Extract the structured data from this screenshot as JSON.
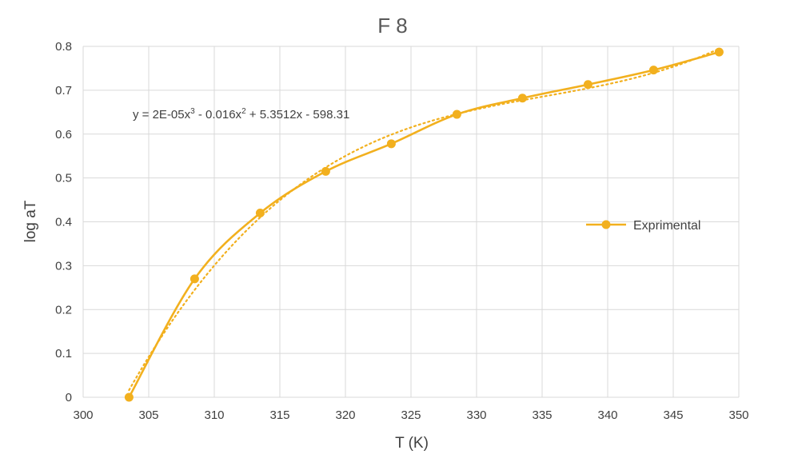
{
  "chart_data": {
    "type": "line",
    "title": "F 8",
    "xlabel": "T (K)",
    "ylabel": "log aT",
    "xlim": [
      300,
      350
    ],
    "ylim": [
      0,
      0.8
    ],
    "x_ticks": [
      300,
      305,
      310,
      315,
      320,
      325,
      330,
      335,
      340,
      345,
      350
    ],
    "y_ticks": [
      0,
      0.1,
      0.2,
      0.3,
      0.4,
      0.5,
      0.6,
      0.7,
      0.8
    ],
    "y_tick_labels": [
      "0",
      "0.1",
      "0.2",
      "0.3",
      "0.4",
      "0.5",
      "0.6",
      "0.7",
      "0.8"
    ],
    "grid": true,
    "legend_position": "right",
    "series": [
      {
        "name": "Exprimental",
        "color": "#F2B01E",
        "x": [
          303.5,
          308.5,
          313.5,
          318.5,
          323.5,
          328.5,
          333.5,
          338.5,
          343.5,
          348.5
        ],
        "y": [
          0,
          0.27,
          0.42,
          0.515,
          0.578,
          0.645,
          0.682,
          0.713,
          0.746,
          0.787
        ]
      }
    ],
    "trendline": {
      "type": "polynomial",
      "order": 3,
      "style": "dotted",
      "color": "#F2B01E",
      "equation": {
        "prefix": "y = 2E-05x",
        "sup1": "3",
        "mid1": " - 0.016x",
        "sup2": "2",
        "suffix": " + 5.3512x - 598.31"
      }
    }
  }
}
